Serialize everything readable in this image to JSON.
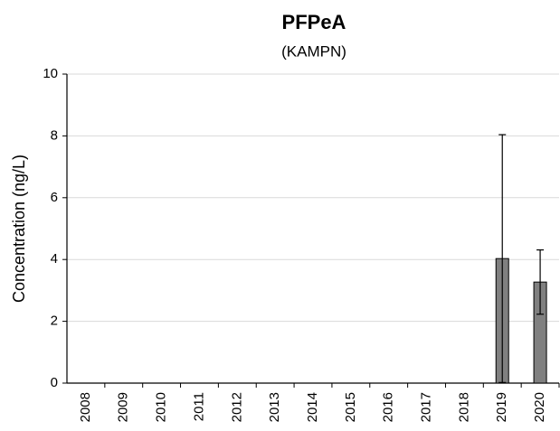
{
  "chart_data": {
    "type": "bar",
    "title": "PFPeA",
    "subtitle": "(KAMPN)",
    "y_label": "Concentration (ng/L)",
    "categories": [
      "2008",
      "2009",
      "2010",
      "2011",
      "2012",
      "2013",
      "2014",
      "2015",
      "2016",
      "2017",
      "2018",
      "2019",
      "2020"
    ],
    "values": [
      null,
      null,
      null,
      null,
      null,
      null,
      null,
      null,
      null,
      null,
      null,
      4.03,
      3.27
    ],
    "errors": [
      null,
      null,
      null,
      null,
      null,
      null,
      null,
      null,
      null,
      null,
      null,
      4.01,
      1.04
    ],
    "color": "#808080",
    "ylim": [
      0,
      10
    ],
    "yticks": [
      0,
      2,
      4,
      6,
      8,
      10
    ],
    "grid": true
  }
}
